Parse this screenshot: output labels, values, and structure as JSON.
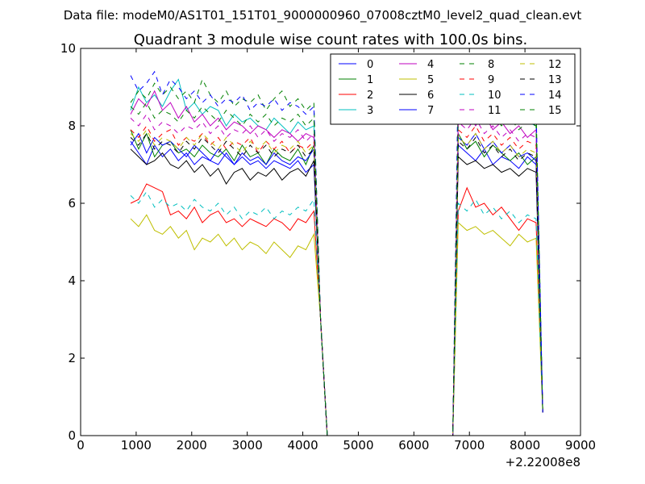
{
  "figure": {
    "suptitle": "Data file: modeM0/AS1T01_151T01_9000000960_07008cztM0_level2_quad_clean.evt"
  },
  "chart_data": {
    "type": "line",
    "title": "Quadrant 3 module wise count rates with 100.0s bins.",
    "xlabel": "",
    "ylabel": "",
    "x_offset_label": "+2.22008e8",
    "xlim": [
      0,
      9000
    ],
    "ylim": [
      0,
      10
    ],
    "x_ticks": [
      0,
      1000,
      2000,
      3000,
      4000,
      5000,
      6000,
      7000,
      8000,
      9000
    ],
    "y_ticks": [
      0,
      2,
      4,
      6,
      8,
      10
    ],
    "grid": false,
    "legend": {
      "position": "top-right",
      "columns": 4
    },
    "segments": [
      {
        "x_start": 900,
        "x_end": 4200
      },
      {
        "x_start": 6800,
        "x_end": 8200
      }
    ],
    "series": [
      {
        "name": "0",
        "color": "#0000ff",
        "dash": "solid",
        "segment_values": [
          [
            7.6,
            7.3,
            7.0,
            7.5,
            7.2,
            7.4,
            7.1,
            7.3,
            7.0,
            7.2,
            7.1,
            7.0,
            7.3,
            7.0,
            7.2,
            7.0,
            7.1,
            6.9,
            7.1,
            7.0,
            6.9,
            7.1,
            6.8,
            7.0
          ],
          [
            7.5,
            7.3,
            7.1,
            7.4,
            7.0,
            7.2,
            7.1,
            6.9,
            7.2,
            7.0
          ]
        ]
      },
      {
        "name": "1",
        "color": "#008000",
        "dash": "solid",
        "segment_values": [
          [
            7.9,
            7.4,
            7.8,
            7.2,
            7.5,
            7.6,
            7.3,
            7.4,
            7.2,
            7.5,
            7.3,
            7.2,
            7.4,
            7.1,
            7.5,
            7.2,
            7.3,
            7.0,
            7.4,
            7.2,
            7.1,
            7.4,
            7.0,
            7.5
          ],
          [
            7.8,
            7.4,
            7.6,
            7.2,
            7.5,
            7.3,
            7.1,
            7.3,
            7.0,
            7.2
          ]
        ]
      },
      {
        "name": "2",
        "color": "#ff0000",
        "dash": "solid",
        "segment_values": [
          [
            6.0,
            6.1,
            6.5,
            6.4,
            6.3,
            5.7,
            5.8,
            5.6,
            5.9,
            5.5,
            5.7,
            5.8,
            5.5,
            5.6,
            5.4,
            5.6,
            5.5,
            5.4,
            5.6,
            5.5,
            5.3,
            5.6,
            5.5,
            5.8
          ],
          [
            5.8,
            6.4,
            5.9,
            6.0,
            5.7,
            5.9,
            5.6,
            5.3,
            5.6,
            5.5
          ]
        ]
      },
      {
        "name": "3",
        "color": "#00bfbf",
        "dash": "solid",
        "segment_values": [
          [
            8.4,
            9.0,
            8.6,
            8.8,
            8.5,
            8.9,
            9.2,
            8.4,
            8.6,
            8.3,
            8.5,
            8.4,
            8.0,
            8.3,
            8.1,
            8.2,
            8.0,
            7.9,
            8.2,
            8.0,
            7.8,
            8.1,
            7.9,
            8.0
          ],
          [
            8.3,
            8.6,
            8.9,
            8.4,
            8.7,
            8.2,
            8.6,
            8.3,
            8.1,
            8.0
          ]
        ]
      },
      {
        "name": "4",
        "color": "#bf00bf",
        "dash": "solid",
        "segment_values": [
          [
            8.3,
            8.7,
            8.5,
            8.9,
            8.4,
            8.6,
            8.2,
            8.5,
            8.1,
            8.3,
            8.0,
            8.2,
            7.9,
            8.1,
            8.0,
            7.8,
            8.0,
            7.9,
            7.7,
            7.9,
            7.8,
            7.6,
            7.8,
            7.7
          ],
          [
            8.2,
            8.4,
            8.0,
            8.3,
            7.9,
            8.1,
            7.8,
            8.0,
            7.7,
            7.9
          ]
        ]
      },
      {
        "name": "5",
        "color": "#bfbf00",
        "dash": "solid",
        "segment_values": [
          [
            5.6,
            5.4,
            5.7,
            5.3,
            5.2,
            5.4,
            5.1,
            5.3,
            4.8,
            5.1,
            5.0,
            5.2,
            4.9,
            5.1,
            4.8,
            5.0,
            4.9,
            4.7,
            5.0,
            4.8,
            4.6,
            4.9,
            4.8,
            5.2
          ],
          [
            5.5,
            5.3,
            5.4,
            5.2,
            5.3,
            5.1,
            4.9,
            5.2,
            5.0,
            5.1
          ]
        ]
      },
      {
        "name": "6",
        "color": "#000000",
        "dash": "solid",
        "segment_values": [
          [
            7.4,
            7.2,
            7.0,
            7.1,
            7.3,
            7.0,
            6.9,
            7.1,
            6.8,
            7.0,
            6.7,
            6.9,
            6.5,
            6.8,
            6.9,
            6.6,
            6.8,
            6.7,
            6.9,
            6.6,
            6.8,
            6.9,
            6.7,
            7.1
          ],
          [
            7.2,
            7.0,
            7.1,
            6.9,
            7.0,
            6.8,
            6.9,
            6.7,
            6.9,
            6.8
          ]
        ]
      },
      {
        "name": "7",
        "color": "#0000ff",
        "dash": "solid",
        "segment_values": [
          [
            7.5,
            7.8,
            7.3,
            7.7,
            7.5,
            7.6,
            7.4,
            7.2,
            7.5,
            7.3,
            7.1,
            7.4,
            7.2,
            7.0,
            7.3,
            7.1,
            7.2,
            7.0,
            7.3,
            7.1,
            7.0,
            7.2,
            7.1,
            7.4
          ],
          [
            7.7,
            7.5,
            7.8,
            7.4,
            7.6,
            7.3,
            7.5,
            7.2,
            7.3,
            7.1
          ]
        ]
      },
      {
        "name": "8",
        "color": "#008000",
        "dash": "dashed",
        "segment_values": [
          [
            8.6,
            8.9,
            8.7,
            9.1,
            8.8,
            9.0,
            8.7,
            8.9,
            8.6,
            9.2,
            8.8,
            8.6,
            8.9,
            8.5,
            8.7,
            8.6,
            8.8,
            8.4,
            8.7,
            8.9,
            8.5,
            8.7,
            8.4,
            8.6
          ],
          [
            8.9,
            8.6,
            8.8,
            8.5,
            8.9,
            8.6,
            8.7,
            8.4,
            8.6,
            8.5
          ]
        ]
      },
      {
        "name": "9",
        "color": "#ff0000",
        "dash": "dashed",
        "segment_values": [
          [
            7.9,
            7.7,
            8.0,
            7.6,
            7.8,
            7.9,
            7.5,
            7.7,
            7.6,
            7.8,
            7.5,
            7.7,
            7.4,
            7.6,
            7.5,
            7.7,
            7.3,
            7.6,
            7.4,
            7.6,
            7.3,
            7.5,
            7.4,
            7.6
          ],
          [
            7.9,
            7.7,
            8.0,
            7.6,
            7.8,
            7.5,
            7.7,
            7.4,
            7.6,
            7.5
          ]
        ]
      },
      {
        "name": "10",
        "color": "#00bfbf",
        "dash": "dashed",
        "segment_values": [
          [
            6.2,
            6.0,
            6.3,
            5.9,
            6.1,
            5.9,
            6.0,
            5.8,
            6.1,
            5.9,
            5.8,
            6.0,
            5.7,
            5.9,
            5.6,
            5.8,
            5.7,
            5.9,
            5.6,
            5.8,
            5.7,
            5.9,
            5.8,
            6.1
          ],
          [
            6.0,
            5.8,
            6.1,
            5.7,
            5.9,
            5.6,
            5.8,
            5.5,
            5.7,
            5.6
          ]
        ]
      },
      {
        "name": "11",
        "color": "#bf00bf",
        "dash": "dashed",
        "segment_values": [
          [
            8.2,
            8.0,
            8.3,
            7.9,
            8.1,
            8.0,
            7.8,
            8.0,
            7.9,
            8.1,
            7.8,
            8.0,
            7.7,
            7.9,
            7.8,
            8.0,
            7.7,
            7.9,
            7.6,
            7.8,
            7.7,
            7.9,
            7.6,
            7.8
          ],
          [
            8.1,
            7.9,
            8.2,
            7.8,
            8.0,
            7.7,
            7.9,
            7.6,
            7.8,
            7.7
          ]
        ]
      },
      {
        "name": "12",
        "color": "#bfbf00",
        "dash": "dashed",
        "segment_values": [
          [
            7.8,
            7.6,
            7.9,
            7.5,
            7.7,
            7.6,
            7.4,
            7.7,
            7.5,
            7.8,
            7.6,
            7.4,
            7.7,
            7.5,
            7.3,
            7.6,
            7.4,
            7.6,
            7.3,
            7.5,
            7.4,
            7.6,
            7.3,
            7.5
          ],
          [
            7.7,
            7.5,
            7.8,
            7.4,
            7.6,
            7.3,
            7.5,
            7.2,
            7.4,
            7.3
          ]
        ]
      },
      {
        "name": "13",
        "color": "#000000",
        "dash": "dashed",
        "segment_values": [
          [
            7.7,
            7.5,
            7.8,
            7.4,
            7.6,
            7.5,
            7.3,
            7.6,
            7.4,
            7.7,
            7.5,
            7.3,
            7.6,
            7.4,
            7.2,
            7.5,
            7.3,
            7.5,
            7.2,
            7.4,
            7.3,
            7.5,
            7.2,
            7.4
          ],
          [
            7.6,
            7.4,
            7.7,
            7.3,
            7.5,
            7.2,
            7.4,
            7.1,
            7.3,
            7.2
          ]
        ]
      },
      {
        "name": "14",
        "color": "#0000ff",
        "dash": "dashed",
        "segment_values": [
          [
            9.3,
            8.9,
            9.1,
            9.4,
            8.8,
            9.2,
            9.0,
            8.7,
            8.9,
            8.6,
            8.8,
            8.5,
            8.7,
            8.6,
            8.8,
            8.4,
            8.6,
            8.5,
            8.7,
            8.4,
            8.6,
            8.5,
            8.3,
            8.5
          ],
          [
            9.5,
            8.8,
            9.0,
            8.6,
            8.9,
            8.5,
            8.7,
            8.4,
            8.6,
            8.5
          ]
        ]
      },
      {
        "name": "15",
        "color": "#008000",
        "dash": "dashed",
        "segment_values": [
          [
            8.5,
            8.3,
            8.6,
            8.2,
            8.4,
            8.3,
            8.1,
            8.4,
            8.2,
            8.5,
            8.3,
            8.1,
            8.4,
            8.2,
            8.0,
            8.3,
            8.1,
            8.3,
            8.0,
            8.2,
            8.1,
            8.3,
            8.0,
            8.2
          ],
          [
            8.4,
            8.2,
            8.5,
            8.1,
            8.3,
            8.0,
            8.2,
            7.9,
            8.1,
            8.0
          ]
        ]
      }
    ]
  }
}
